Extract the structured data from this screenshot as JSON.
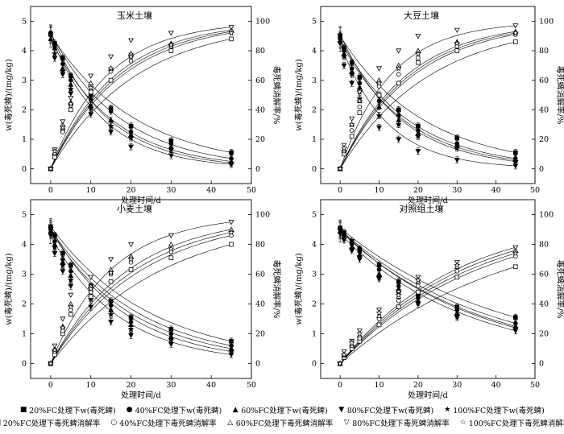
{
  "chart_data": [
    {
      "type": "scatter",
      "title": "玉米土壤",
      "xlabel": "处理时间/d",
      "ylabel": "w(毒死蜱)/(mg/kg)",
      "y2label": "毒死蜱消解率/%",
      "xlim": [
        -5,
        50
      ],
      "xticks": [
        0,
        10,
        20,
        30,
        40,
        50
      ],
      "ylim": [
        -0.5,
        5.5
      ],
      "yticks": [
        0,
        1,
        2,
        3,
        4,
        5
      ],
      "y2lim": [
        -10,
        110
      ],
      "y2ticks": [
        0,
        20,
        40,
        60,
        80,
        100
      ],
      "x": [
        0,
        1,
        3,
        5,
        10,
        15,
        20,
        30,
        45
      ],
      "concentration_series": [
        {
          "name": "20%FC处理下w(毒死蜱)",
          "values": [
            4.55,
            4.25,
            3.75,
            3.15,
            2.5,
            2.05,
            1.45,
            0.95,
            0.55
          ]
        },
        {
          "name": "40%FC处理下w(毒死蜱)",
          "values": [
            4.6,
            4.15,
            3.55,
            3.0,
            2.35,
            1.95,
            1.25,
            0.85,
            0.35
          ]
        },
        {
          "name": "60%FC处理下w(毒死蜱)",
          "values": [
            4.4,
            4.1,
            3.4,
            2.85,
            2.15,
            1.65,
            1.15,
            0.75,
            0.25
          ]
        },
        {
          "name": "80%FC处理下w(毒死蜱)",
          "values": [
            4.5,
            3.75,
            3.2,
            2.55,
            1.85,
            1.25,
            0.75,
            0.45,
            0.15
          ]
        },
        {
          "name": "100%FC处理下w(毒死蜱)",
          "values": [
            4.6,
            3.9,
            3.3,
            2.7,
            2.05,
            1.45,
            1.05,
            0.65,
            0.2
          ]
        }
      ],
      "rate_series": [
        {
          "name": "20%FC处理下毒死蜱消解率",
          "values": [
            0,
            8,
            26,
            40,
            52,
            60,
            77,
            80,
            88
          ]
        },
        {
          "name": "40%FC处理下毒死蜱消解率",
          "values": [
            0,
            10,
            25,
            43,
            56,
            66,
            73,
            83,
            93
          ]
        },
        {
          "name": "60%FC处理下毒死蜱消解率",
          "values": [
            0,
            11,
            30,
            45,
            58,
            68,
            78,
            85,
            94
          ]
        },
        {
          "name": "80%FC处理下毒死蜱消解率",
          "values": [
            0,
            13,
            32,
            48,
            63,
            76,
            87,
            92,
            96
          ]
        },
        {
          "name": "100%FC处理下毒死蜱消解率",
          "values": [
            0,
            12,
            28,
            44,
            55,
            68,
            76,
            84,
            92
          ]
        }
      ]
    },
    {
      "type": "scatter",
      "title": "大豆土壤",
      "xlabel": "处理时间/d",
      "ylabel": "w(毒死蜱)/(mg/kg)",
      "y2label": "毒死蜱消解率/%",
      "xlim": [
        -5,
        50
      ],
      "xticks": [
        0,
        10,
        20,
        30,
        40,
        50
      ],
      "ylim": [
        -0.5,
        5.5
      ],
      "yticks": [
        0,
        1,
        2,
        3,
        4,
        5
      ],
      "y2lim": [
        -10,
        110
      ],
      "y2ticks": [
        0,
        20,
        40,
        60,
        80,
        100
      ],
      "x": [
        0,
        1,
        3,
        5,
        10,
        15,
        20,
        30,
        45
      ],
      "concentration_series": [
        {
          "name": "20%FC处理下w(毒死蜱)",
          "values": [
            4.5,
            4.1,
            3.6,
            3.1,
            2.5,
            2.0,
            1.45,
            1.05,
            0.55
          ]
        },
        {
          "name": "40%FC处理下w(毒死蜱)",
          "values": [
            4.4,
            4.0,
            3.4,
            2.9,
            2.3,
            1.8,
            1.3,
            0.85,
            0.35
          ]
        },
        {
          "name": "60%FC处理下w(毒死蜱)",
          "values": [
            4.35,
            3.9,
            3.3,
            2.75,
            2.1,
            1.65,
            1.2,
            0.8,
            0.3
          ]
        },
        {
          "name": "80%FC处理下w(毒死蜱)",
          "values": [
            4.25,
            3.5,
            2.9,
            2.35,
            1.4,
            1.0,
            0.6,
            0.3,
            0.1
          ]
        },
        {
          "name": "100%FC处理下w(毒死蜱)",
          "values": [
            4.55,
            3.8,
            3.2,
            2.6,
            1.8,
            1.5,
            1.1,
            0.7,
            0.25
          ]
        }
      ],
      "rate_series": [
        {
          "name": "20%FC处理下毒死蜱消解率",
          "values": [
            0,
            10,
            22,
            38,
            50,
            58,
            72,
            80,
            86
          ]
        },
        {
          "name": "40%FC处理下毒死蜱消解率",
          "values": [
            0,
            12,
            26,
            42,
            56,
            64,
            75,
            83,
            91
          ]
        },
        {
          "name": "60%FC处理下毒死蜱消解率",
          "values": [
            0,
            13,
            30,
            46,
            60,
            70,
            80,
            86,
            93
          ]
        },
        {
          "name": "80%FC处理下毒死蜱消解率",
          "values": [
            0,
            16,
            34,
            52,
            68,
            80,
            90,
            94,
            97
          ]
        },
        {
          "name": "100%FC处理下毒死蜱消解率",
          "values": [
            0,
            14,
            30,
            46,
            58,
            68,
            78,
            85,
            92
          ]
        }
      ]
    },
    {
      "type": "scatter",
      "title": "小麦土壤",
      "xlabel": "处理时间/d",
      "ylabel": "w(毒死蜱)/(mg/kg)",
      "y2label": "毒死蜱消解率/%",
      "xlim": [
        -5,
        50
      ],
      "xticks": [
        0,
        10,
        20,
        30,
        40,
        50
      ],
      "ylim": [
        -0.5,
        5.5
      ],
      "yticks": [
        0,
        1,
        2,
        3,
        4,
        5
      ],
      "y2lim": [
        -10,
        110
      ],
      "y2ticks": [
        0,
        20,
        40,
        60,
        80,
        100
      ],
      "x": [
        0,
        1,
        3,
        5,
        10,
        15,
        20,
        30,
        45
      ],
      "concentration_series": [
        {
          "name": "20%FC处理下w(毒死蜱)",
          "values": [
            4.6,
            4.3,
            3.7,
            3.3,
            2.6,
            2.1,
            1.55,
            1.15,
            0.75
          ]
        },
        {
          "name": "40%FC处理下w(毒死蜱)",
          "values": [
            4.5,
            4.1,
            3.5,
            3.1,
            2.45,
            1.95,
            1.4,
            1.0,
            0.6
          ]
        },
        {
          "name": "60%FC处理下w(毒死蜱)",
          "values": [
            4.45,
            4.0,
            3.4,
            2.95,
            2.3,
            1.8,
            1.3,
            0.9,
            0.5
          ]
        },
        {
          "name": "80%FC处理下w(毒死蜱)",
          "values": [
            4.3,
            3.7,
            3.1,
            2.6,
            1.9,
            1.4,
            0.95,
            0.65,
            0.3
          ]
        },
        {
          "name": "100%FC处理下w(毒死蜱)",
          "values": [
            4.55,
            3.9,
            3.3,
            2.8,
            2.15,
            1.65,
            1.15,
            0.8,
            0.4
          ]
        }
      ],
      "rate_series": [
        {
          "name": "20%FC处理下毒死蜱消解率",
          "values": [
            0,
            6,
            20,
            33,
            45,
            55,
            63,
            71,
            80
          ]
        },
        {
          "name": "40%FC处理下毒死蜱消解率",
          "values": [
            0,
            8,
            22,
            36,
            48,
            60,
            68,
            75,
            86
          ]
        },
        {
          "name": "60%FC处理下毒死蜱消解率",
          "values": [
            0,
            10,
            25,
            40,
            52,
            63,
            72,
            80,
            90
          ]
        },
        {
          "name": "80%FC处理下毒死蜱消解率",
          "values": [
            0,
            12,
            30,
            46,
            58,
            70,
            80,
            86,
            95
          ]
        },
        {
          "name": "100%FC处理下毒死蜱消解率",
          "values": [
            0,
            9,
            24,
            38,
            50,
            61,
            70,
            77,
            88
          ]
        }
      ]
    },
    {
      "type": "scatter",
      "title": "对照组土壤",
      "xlabel": "处理时间/d",
      "ylabel": "w(毒死蜱)/(mg/kg)",
      "y2label": "毒死蜱消解率/%",
      "xlim": [
        -5,
        50
      ],
      "xticks": [
        0,
        10,
        20,
        30,
        40,
        50
      ],
      "ylim": [
        -0.5,
        5.5
      ],
      "yticks": [
        0,
        1,
        2,
        3,
        4,
        5
      ],
      "y2lim": [
        -10,
        110
      ],
      "y2ticks": [
        0,
        20,
        40,
        60,
        80,
        100
      ],
      "x": [
        0,
        1,
        3,
        5,
        10,
        15,
        20,
        30,
        45
      ],
      "concentration_series": [
        {
          "name": "20%FC处理下w(毒死蜱)",
          "values": [
            4.55,
            4.4,
            4.1,
            3.85,
            3.3,
            2.75,
            2.3,
            1.9,
            1.55
          ]
        },
        {
          "name": "40%FC处理下w(毒死蜱)",
          "values": [
            4.5,
            4.3,
            4.0,
            3.75,
            3.15,
            2.6,
            2.2,
            1.8,
            1.35
          ]
        },
        {
          "name": "60%FC处理下w(毒死蜱)",
          "values": [
            4.45,
            4.25,
            3.9,
            3.65,
            3.0,
            2.5,
            2.1,
            1.7,
            1.25
          ]
        },
        {
          "name": "80%FC处理下w(毒死蜱)",
          "values": [
            4.35,
            4.15,
            3.8,
            3.5,
            2.85,
            2.35,
            2.0,
            1.55,
            1.1
          ]
        },
        {
          "name": "100%FC处理下w(毒死蜱)",
          "values": [
            4.5,
            4.2,
            3.85,
            3.6,
            2.9,
            2.45,
            2.05,
            1.6,
            1.2
          ]
        }
      ],
      "rate_series": [
        {
          "name": "20%FC处理下毒死蜱消解率",
          "values": [
            0,
            4,
            10,
            15,
            26,
            38,
            48,
            58,
            65
          ]
        },
        {
          "name": "40%FC处理下毒死蜱消解率",
          "values": [
            0,
            5,
            12,
            17,
            30,
            42,
            52,
            62,
            72
          ]
        },
        {
          "name": "60%FC处理下毒死蜱消解率",
          "values": [
            0,
            6,
            13,
            19,
            32,
            45,
            55,
            65,
            76
          ]
        },
        {
          "name": "80%FC处理下毒死蜱消解率",
          "values": [
            0,
            8,
            15,
            22,
            36,
            48,
            58,
            68,
            78
          ]
        },
        {
          "name": "100%FC处理下毒死蜱消解率",
          "values": [
            0,
            6,
            14,
            20,
            34,
            46,
            56,
            66,
            74
          ]
        }
      ]
    }
  ],
  "legend": {
    "row1": [
      {
        "symbol": "■",
        "label": "20%FC处理下w(毒死蜱)"
      },
      {
        "symbol": "●",
        "label": "40%FC处理下w(毒死蜱)"
      },
      {
        "symbol": "▲",
        "label": "60%FC处理下w(毒死蜱)"
      },
      {
        "symbol": "▼",
        "label": "80%FC处理下w(毒死蜱)"
      },
      {
        "symbol": "★",
        "label": "100%FC处理下w(毒死蜱)"
      }
    ],
    "row2": [
      {
        "symbol": "□",
        "label": "20%FC处理下毒死蜱消解率"
      },
      {
        "symbol": "○",
        "label": "40%FC处理下毒死蜱消解率"
      },
      {
        "symbol": "△",
        "label": "60%FC处理下毒死蜱消解率"
      },
      {
        "symbol": "▽",
        "label": "80%FC处理下毒死蜱消解率"
      },
      {
        "symbol": "☆",
        "label": "100%FC处理下毒死蜱消解率"
      }
    ]
  }
}
